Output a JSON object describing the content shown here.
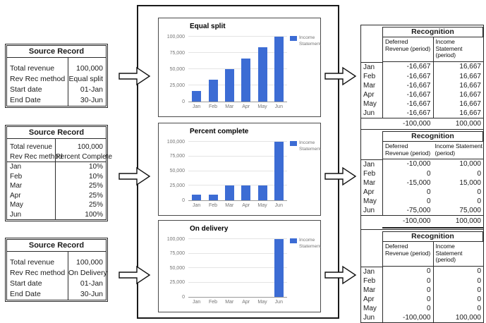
{
  "source_records": [
    {
      "title": "Source Record",
      "rows": [
        {
          "label": "Total revenue",
          "value": "100,000"
        },
        {
          "label": "Rev Rec method",
          "value": "Equal split"
        },
        {
          "label": "Start date",
          "value": "01-Jan"
        },
        {
          "label": "End Date",
          "value": "30-Jun"
        }
      ]
    },
    {
      "title": "Source Record",
      "rows": [
        {
          "label": "Total revenue",
          "value": "100,000"
        },
        {
          "label": "Rev Rec method",
          "value": "Percent Complete"
        }
      ],
      "schedule": [
        {
          "label": "Jan",
          "value": "10%"
        },
        {
          "label": "Feb",
          "value": "10%"
        },
        {
          "label": "Mar",
          "value": "25%"
        },
        {
          "label": "Apr",
          "value": "25%"
        },
        {
          "label": "May",
          "value": "25%"
        },
        {
          "label": "Jun",
          "value": "100%"
        }
      ]
    },
    {
      "title": "Source Record",
      "rows": [
        {
          "label": "Total revenue",
          "value": "100,000"
        },
        {
          "label": "Rev Rec method",
          "value": "On Delivery"
        },
        {
          "label": "Start date",
          "value": "01-Jan"
        },
        {
          "label": "End Date",
          "value": "30-Jun"
        }
      ]
    }
  ],
  "chart_data": [
    {
      "type": "bar",
      "title": "Equal split",
      "categories": [
        "Jan",
        "Feb",
        "Mar",
        "Apr",
        "May",
        "Jun"
      ],
      "values": [
        16667,
        33333,
        50000,
        66667,
        83333,
        100000
      ],
      "ylim": [
        0,
        100000
      ],
      "yticks": [
        0,
        25000,
        50000,
        75000,
        100000
      ],
      "ytick_labels": [
        "0",
        "25,000",
        "50,000",
        "75,000",
        "100,000"
      ],
      "legend": "Income Statement",
      "legend_position": "right",
      "grid": true,
      "bar_color": "#3c6cd4"
    },
    {
      "type": "bar",
      "title": "Percent complete",
      "categories": [
        "Jan",
        "Feb",
        "Mar",
        "Apr",
        "May",
        "Jun"
      ],
      "values": [
        10000,
        10000,
        25000,
        25000,
        25000,
        100000
      ],
      "ylim": [
        0,
        100000
      ],
      "yticks": [
        0,
        25000,
        50000,
        75000,
        100000
      ],
      "ytick_labels": [
        "0",
        "25,000",
        "50,000",
        "75,000",
        "100,000"
      ],
      "legend": "Income Statement",
      "legend_position": "right",
      "grid": true,
      "bar_color": "#3c6cd4"
    },
    {
      "type": "bar",
      "title": "On delivery",
      "categories": [
        "Jan",
        "Feb",
        "Mar",
        "Apr",
        "May",
        "Jun"
      ],
      "values": [
        0,
        0,
        0,
        0,
        0,
        100000
      ],
      "ylim": [
        0,
        100000
      ],
      "yticks": [
        0,
        25000,
        50000,
        75000,
        100000
      ],
      "ytick_labels": [
        "0",
        "25,000",
        "50,000",
        "75,000",
        "100,000"
      ],
      "legend": "Income Statement",
      "legend_position": "right",
      "grid": true,
      "bar_color": "#3c6cd4"
    }
  ],
  "recognition_tables": [
    {
      "title": "Recognition",
      "columns": [
        "Deferred Revenue (period)",
        "Income Statement (period)"
      ],
      "rows": [
        [
          "Jan",
          "-16,667",
          "16,667"
        ],
        [
          "Feb",
          "-16,667",
          "16,667"
        ],
        [
          "Mar",
          "-16,667",
          "16,667"
        ],
        [
          "Apr",
          "-16,667",
          "16,667"
        ],
        [
          "May",
          "-16,667",
          "16,667"
        ],
        [
          "Jun",
          "-16,667",
          "16,667"
        ]
      ],
      "totals": [
        "-100,000",
        "100,000"
      ]
    },
    {
      "title": "Recognition",
      "columns": [
        "Deferred Revenue (period)",
        "Income Statement (period)"
      ],
      "rows": [
        [
          "Jan",
          "-10,000",
          "10,000"
        ],
        [
          "Feb",
          "0",
          "0"
        ],
        [
          "Mar",
          "-15,000",
          "15,000"
        ],
        [
          "Apr",
          "0",
          "0"
        ],
        [
          "May",
          "0",
          "0"
        ],
        [
          "Jun",
          "-75,000",
          "75,000"
        ]
      ],
      "totals": [
        "-100,000",
        "100,000"
      ]
    },
    {
      "title": "Recognition",
      "columns": [
        "Deferred Revenue (period)",
        "Income Statement (period)"
      ],
      "rows": [
        [
          "Jan",
          "0",
          "0"
        ],
        [
          "Feb",
          "0",
          "0"
        ],
        [
          "Mar",
          "0",
          "0"
        ],
        [
          "Apr",
          "0",
          "0"
        ],
        [
          "May",
          "0",
          "0"
        ],
        [
          "Jun",
          "-100,000",
          "100,000"
        ]
      ],
      "totals": [
        "-100,000",
        "100,000"
      ]
    }
  ]
}
